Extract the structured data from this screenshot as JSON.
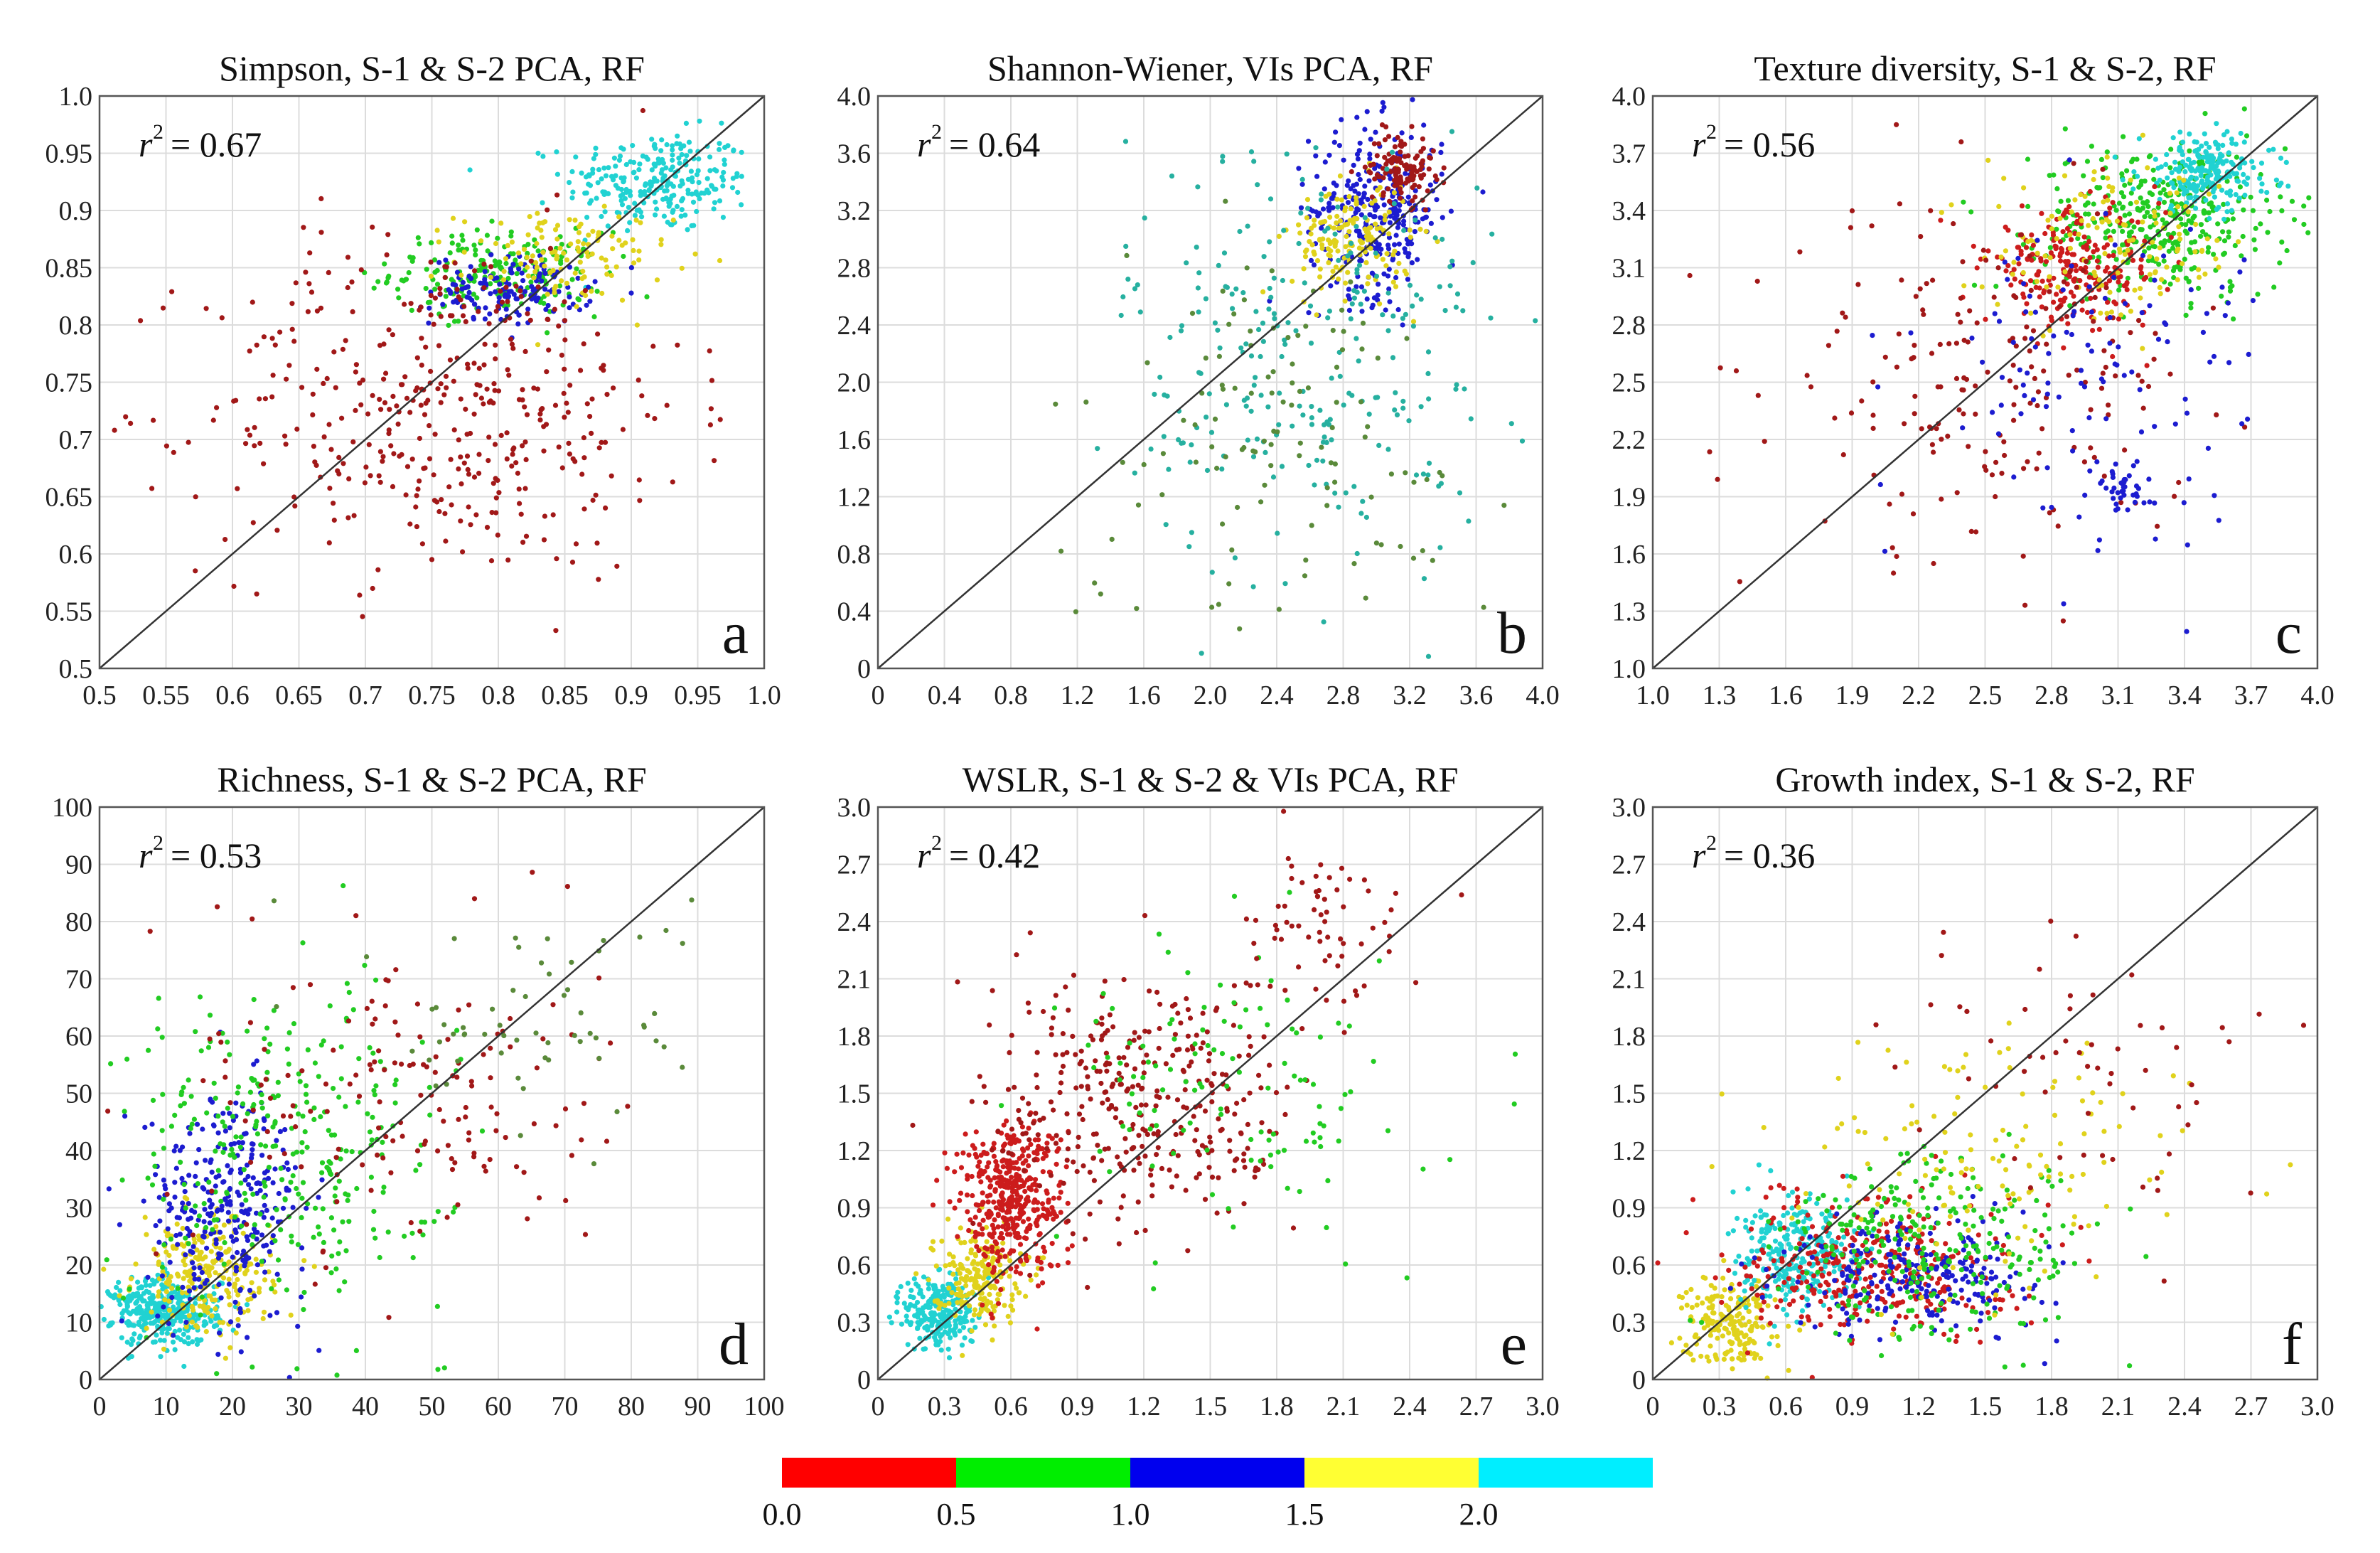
{
  "chart_data": [
    {
      "type": "scatter",
      "title": "Simpson, S-1 & S-2 PCA, RF",
      "r2_text": "= 0.67",
      "panel_label": "a",
      "xlim": [
        0.5,
        1.0
      ],
      "ylim": [
        0.5,
        1.0
      ],
      "x_ticks": [
        "0.5",
        "0.55",
        "0.6",
        "0.65",
        "0.7",
        "0.75",
        "0.8",
        "0.85",
        "0.9",
        "0.95",
        "1.0"
      ],
      "y_ticks": [
        "0.5",
        "0.55",
        "0.6",
        "0.65",
        "0.7",
        "0.75",
        "0.8",
        "0.85",
        "0.9",
        "0.95",
        "1.0"
      ],
      "clusters": [
        {
          "cx": 0.92,
          "cy": 0.925,
          "sx": 0.035,
          "sy": 0.022,
          "n": 260,
          "color": "#21d2d2"
        },
        {
          "cx": 0.8,
          "cy": 0.845,
          "sx": 0.04,
          "sy": 0.018,
          "n": 220,
          "color": "#22cc22"
        },
        {
          "cx": 0.81,
          "cy": 0.83,
          "sx": 0.03,
          "sy": 0.015,
          "n": 140,
          "color": "#1c1cd0"
        },
        {
          "cx": 0.85,
          "cy": 0.86,
          "sx": 0.04,
          "sy": 0.02,
          "n": 120,
          "color": "#e0d21c"
        },
        {
          "cx": 0.76,
          "cy": 0.73,
          "sx": 0.09,
          "sy": 0.075,
          "n": 420,
          "color": "#a11818"
        }
      ]
    },
    {
      "type": "scatter",
      "title": "Shannon-Wiener, VIs PCA, RF",
      "r2_text": "= 0.64",
      "panel_label": "b",
      "xlim": [
        0,
        4.0
      ],
      "ylim": [
        0,
        4.0
      ],
      "x_ticks": [
        "0",
        "0.4",
        "0.8",
        "1.2",
        "1.6",
        "2.0",
        "2.4",
        "2.8",
        "3.2",
        "3.6",
        "4.0"
      ],
      "y_ticks": [
        "0",
        "0.4",
        "0.8",
        "1.2",
        "1.6",
        "2.0",
        "2.4",
        "2.8",
        "3.2",
        "3.6",
        "4.0"
      ],
      "clusters": [
        {
          "cx": 3.0,
          "cy": 3.2,
          "sx": 0.2,
          "sy": 0.3,
          "n": 300,
          "color": "#1c1cd0"
        },
        {
          "cx": 2.85,
          "cy": 3.0,
          "sx": 0.18,
          "sy": 0.2,
          "n": 160,
          "color": "#e0d21c"
        },
        {
          "cx": 3.15,
          "cy": 3.5,
          "sx": 0.1,
          "sy": 0.12,
          "n": 120,
          "color": "#a11818"
        },
        {
          "cx": 2.6,
          "cy": 2.2,
          "sx": 0.55,
          "sy": 0.8,
          "n": 260,
          "color": "#26b0a0"
        },
        {
          "cx": 2.4,
          "cy": 1.6,
          "sx": 0.7,
          "sy": 0.7,
          "n": 120,
          "color": "#5a8a3a"
        }
      ]
    },
    {
      "type": "scatter",
      "title": "Texture diversity, S-1 & S-2, RF",
      "r2_text": "= 0.56",
      "panel_label": "c",
      "xlim": [
        1.0,
        4.0
      ],
      "ylim": [
        1.0,
        4.0
      ],
      "x_ticks": [
        "1.0",
        "1.3",
        "1.6",
        "1.9",
        "2.2",
        "2.5",
        "2.8",
        "3.1",
        "3.4",
        "3.7",
        "4.0"
      ],
      "y_ticks": [
        "1.0",
        "1.3",
        "1.6",
        "1.9",
        "2.2",
        "2.5",
        "2.8",
        "3.1",
        "3.4",
        "3.7",
        "4.0"
      ],
      "clusters": [
        {
          "cx": 3.3,
          "cy": 3.35,
          "sx": 0.28,
          "sy": 0.2,
          "n": 380,
          "color": "#22cc22"
        },
        {
          "cx": 3.5,
          "cy": 3.6,
          "sx": 0.15,
          "sy": 0.1,
          "n": 220,
          "color": "#21d2d2"
        },
        {
          "cx": 2.9,
          "cy": 3.1,
          "sx": 0.2,
          "sy": 0.15,
          "n": 240,
          "color": "#cc1c1c"
        },
        {
          "cx": 3.1,
          "cy": 3.2,
          "sx": 0.3,
          "sy": 0.2,
          "n": 140,
          "color": "#e0d21c"
        },
        {
          "cx": 2.5,
          "cy": 2.5,
          "sx": 0.45,
          "sy": 0.45,
          "n": 200,
          "color": "#a11818"
        },
        {
          "cx": 3.0,
          "cy": 2.6,
          "sx": 0.4,
          "sy": 0.4,
          "n": 120,
          "color": "#1c1cd0"
        },
        {
          "cx": 3.1,
          "cy": 1.95,
          "sx": 0.08,
          "sy": 0.07,
          "n": 40,
          "color": "#1c1cd0"
        }
      ]
    },
    {
      "type": "scatter",
      "title": "Richness, S-1 & S-2 PCA, RF",
      "r2_text": "= 0.53",
      "panel_label": "d",
      "xlim": [
        0,
        100
      ],
      "ylim": [
        0,
        100
      ],
      "x_ticks": [
        "0",
        "10",
        "20",
        "30",
        "40",
        "50",
        "60",
        "70",
        "80",
        "90",
        "100"
      ],
      "y_ticks": [
        "0",
        "10",
        "20",
        "30",
        "40",
        "50",
        "60",
        "70",
        "80",
        "90",
        "100"
      ],
      "clusters": [
        {
          "cx": 10,
          "cy": 12,
          "sx": 4,
          "sy": 3,
          "n": 360,
          "color": "#21d2d2"
        },
        {
          "cx": 16,
          "cy": 18,
          "sx": 5,
          "sy": 5,
          "n": 240,
          "color": "#e0d21c"
        },
        {
          "cx": 19,
          "cy": 30,
          "sx": 6,
          "sy": 10,
          "n": 300,
          "color": "#1c1cd0"
        },
        {
          "cx": 28,
          "cy": 40,
          "sx": 12,
          "sy": 14,
          "n": 320,
          "color": "#22cc22"
        },
        {
          "cx": 45,
          "cy": 50,
          "sx": 15,
          "sy": 14,
          "n": 160,
          "color": "#a11818"
        },
        {
          "cx": 65,
          "cy": 62,
          "sx": 12,
          "sy": 10,
          "n": 60,
          "color": "#5a8a3a"
        }
      ]
    },
    {
      "type": "scatter",
      "title": "WSLR, S-1 & S-2 & VIs PCA, RF",
      "r2_text": "= 0.42",
      "panel_label": "e",
      "xlim": [
        0,
        3.0
      ],
      "ylim": [
        0,
        3.0
      ],
      "x_ticks": [
        "0",
        "0.3",
        "0.6",
        "0.9",
        "1.2",
        "1.5",
        "1.8",
        "2.1",
        "2.4",
        "2.7",
        "3.0"
      ],
      "y_ticks": [
        "0",
        "0.3",
        "0.6",
        "0.9",
        "1.2",
        "1.5",
        "1.8",
        "2.1",
        "2.4",
        "2.7",
        "3.0"
      ],
      "clusters": [
        {
          "cx": 0.28,
          "cy": 0.35,
          "sx": 0.08,
          "sy": 0.1,
          "n": 260,
          "color": "#21d2d2"
        },
        {
          "cx": 0.45,
          "cy": 0.55,
          "sx": 0.1,
          "sy": 0.12,
          "n": 200,
          "color": "#e0d21c"
        },
        {
          "cx": 0.6,
          "cy": 0.95,
          "sx": 0.12,
          "sy": 0.2,
          "n": 420,
          "color": "#cc1c1c"
        },
        {
          "cx": 1.2,
          "cy": 1.45,
          "sx": 0.35,
          "sy": 0.35,
          "n": 360,
          "color": "#a11818"
        },
        {
          "cx": 1.6,
          "cy": 1.5,
          "sx": 0.4,
          "sy": 0.4,
          "n": 120,
          "color": "#22cc22"
        },
        {
          "cx": 2.0,
          "cy": 2.4,
          "sx": 0.2,
          "sy": 0.2,
          "n": 60,
          "color": "#a11818"
        }
      ]
    },
    {
      "type": "scatter",
      "title": "Growth index, S-1 & S-2, RF",
      "r2_text": "= 0.36",
      "panel_label": "f",
      "xlim": [
        0,
        3.0
      ],
      "ylim": [
        0,
        3.0
      ],
      "x_ticks": [
        "0",
        "0.3",
        "0.6",
        "0.9",
        "1.2",
        "1.5",
        "1.8",
        "2.1",
        "2.4",
        "2.7",
        "3.0"
      ],
      "y_ticks": [
        "0",
        "0.3",
        "0.6",
        "0.9",
        "1.2",
        "1.5",
        "1.8",
        "2.1",
        "2.4",
        "2.7",
        "3.0"
      ],
      "clusters": [
        {
          "cx": 0.35,
          "cy": 0.3,
          "sx": 0.1,
          "sy": 0.12,
          "n": 200,
          "color": "#e0d21c"
        },
        {
          "cx": 0.65,
          "cy": 0.65,
          "sx": 0.14,
          "sy": 0.15,
          "n": 260,
          "color": "#21d2d2"
        },
        {
          "cx": 1.0,
          "cy": 0.6,
          "sx": 0.3,
          "sy": 0.18,
          "n": 360,
          "color": "#cc1c1c"
        },
        {
          "cx": 1.2,
          "cy": 0.55,
          "sx": 0.3,
          "sy": 0.15,
          "n": 240,
          "color": "#1c1cd0"
        },
        {
          "cx": 1.3,
          "cy": 0.7,
          "sx": 0.35,
          "sy": 0.25,
          "n": 280,
          "color": "#22cc22"
        },
        {
          "cx": 1.5,
          "cy": 1.1,
          "sx": 0.45,
          "sy": 0.35,
          "n": 140,
          "color": "#e0d21c"
        },
        {
          "cx": 2.0,
          "cy": 1.6,
          "sx": 0.5,
          "sy": 0.45,
          "n": 60,
          "color": "#a11818"
        }
      ]
    }
  ],
  "colorbar": {
    "colors": [
      "#ff0000",
      "#00ee00",
      "#0000ee",
      "#ffff33",
      "#00eeff"
    ],
    "labels": [
      "0.0",
      "0.5",
      "1.0",
      "1.5",
      "2.0"
    ]
  }
}
